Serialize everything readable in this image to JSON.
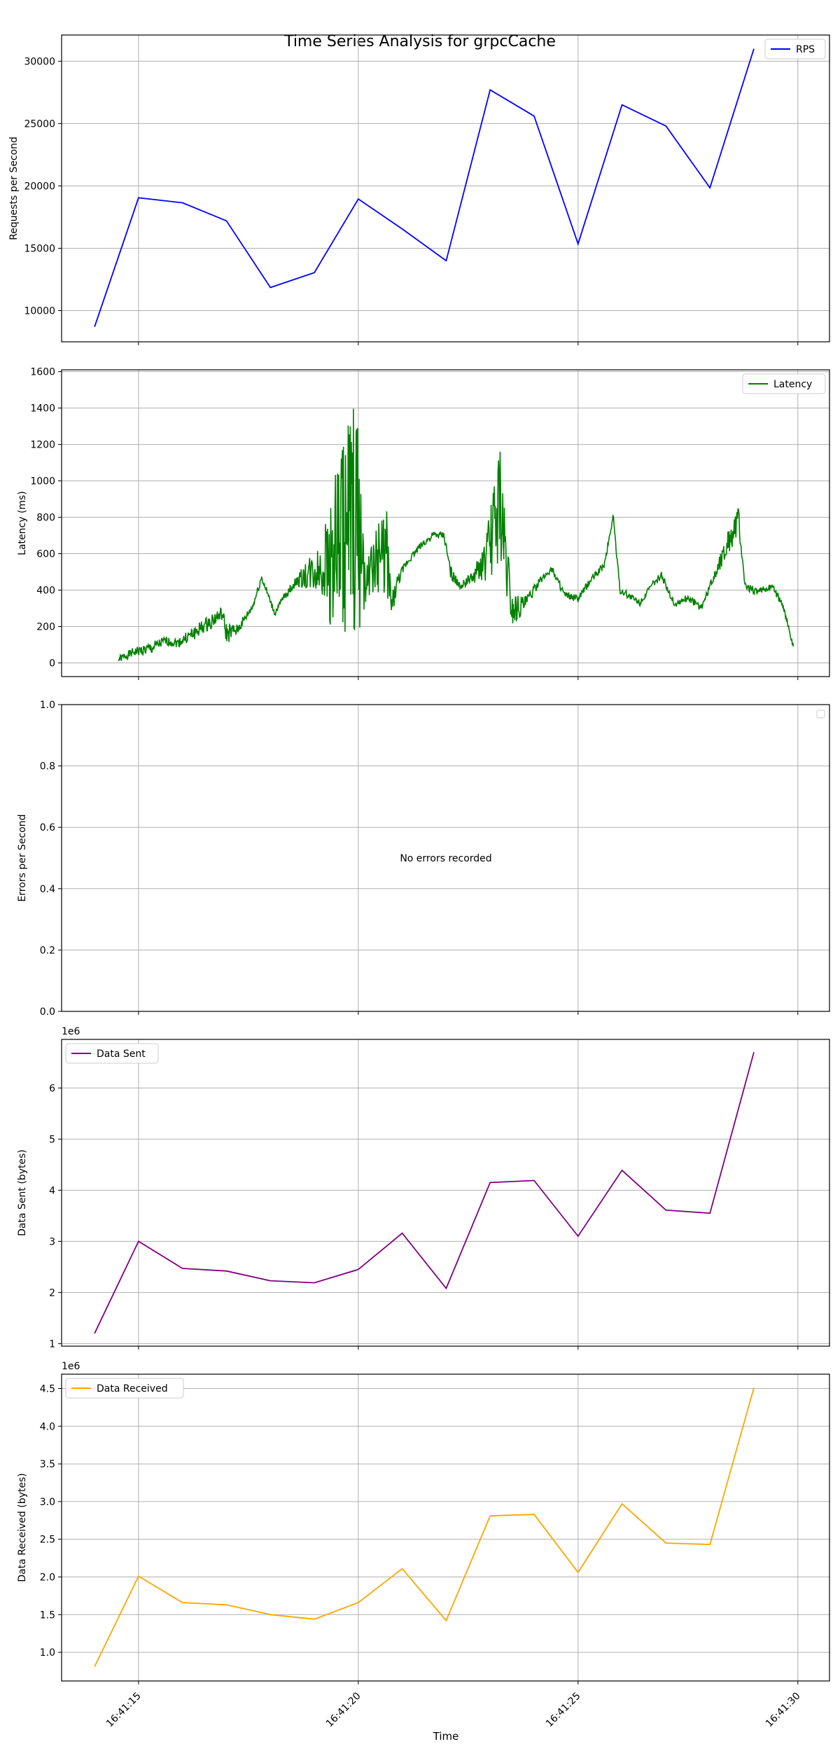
{
  "figure": {
    "title": "Time Series Analysis for grpcCache",
    "xlabel": "Time"
  },
  "x_ticks": [
    "16:41:15",
    "16:41:20",
    "16:41:25",
    "16:41:30"
  ],
  "colors": {
    "rps": "#0000ff",
    "latency": "#008000",
    "data_sent": "#800080",
    "data_received": "#ffa500",
    "grid": "#b0b0b0"
  },
  "chart_data": [
    {
      "type": "line",
      "ylabel": "Requests per Second",
      "x": [
        "16:41:14",
        "16:41:15",
        "16:41:16",
        "16:41:17",
        "16:41:18",
        "16:41:19",
        "16:41:20",
        "16:41:21",
        "16:41:22",
        "16:41:23",
        "16:41:24",
        "16:41:25",
        "16:41:26",
        "16:41:27",
        "16:41:28",
        "16:41:29"
      ],
      "series": [
        {
          "name": "RPS",
          "values": [
            8700,
            19050,
            18650,
            17200,
            11850,
            13050,
            18950,
            16550,
            14000,
            27700,
            25600,
            15350,
            26500,
            24800,
            19850,
            31000
          ]
        }
      ],
      "ylim": [
        7500,
        32100
      ],
      "yticks": [
        10000,
        15000,
        20000,
        25000,
        30000
      ],
      "ytick_labels": [
        "10000",
        "15000",
        "20000",
        "25000",
        "30000"
      ],
      "legend": "upper right",
      "grid": true
    },
    {
      "type": "line",
      "ylabel": "Latency (ms)",
      "series": [
        {
          "name": "Latency",
          "values_note": "dense high-frequency samples from 16:41:14.5 to 16:41:29.9"
        }
      ],
      "ylim": [
        -75,
        1610
      ],
      "yticks": [
        0,
        200,
        400,
        600,
        800,
        1000,
        1200,
        1400,
        1600
      ],
      "ytick_labels": [
        "0",
        "200",
        "400",
        "600",
        "800",
        "1000",
        "1200",
        "1400",
        "1600"
      ],
      "envelope": {
        "t": [
          14.55,
          14.9,
          15.3,
          15.6,
          15.9,
          16.3,
          16.6,
          16.9,
          17.0,
          17.25,
          17.6,
          17.8,
          18.1,
          18.3,
          18.6,
          18.9,
          19.2,
          19.4,
          19.7,
          19.95,
          20.2,
          20.45,
          20.65,
          20.75,
          20.9,
          21.1,
          21.4,
          21.7,
          21.95,
          22.1,
          22.3,
          22.6,
          22.9,
          23.0,
          23.2,
          23.5,
          23.8,
          24.1,
          24.4,
          24.7,
          25.0,
          25.3,
          25.6,
          25.8,
          25.95,
          26.15,
          26.4,
          26.7,
          26.9,
          27.2,
          27.5,
          27.8,
          28.0,
          28.3,
          28.65,
          28.8,
          29.1,
          29.4,
          29.65,
          29.9
        ],
        "mid": [
          20,
          60,
          80,
          120,
          110,
          170,
          220,
          270,
          160,
          180,
          310,
          470,
          270,
          360,
          450,
          490,
          520,
          580,
          700,
          760,
          460,
          570,
          620,
          300,
          450,
          550,
          640,
          700,
          700,
          500,
          420,
          470,
          560,
          650,
          900,
          300,
          330,
          440,
          520,
          370,
          350,
          460,
          540,
          810,
          400,
          370,
          330,
          430,
          480,
          320,
          360,
          300,
          420,
          600,
          780,
          420,
          390,
          420,
          330,
          80
        ],
        "amp": [
          20,
          25,
          35,
          25,
          25,
          40,
          40,
          40,
          60,
          30,
          20,
          25,
          15,
          20,
          30,
          100,
          160,
          420,
          600,
          700,
          100,
          200,
          250,
          80,
          40,
          20,
          20,
          20,
          20,
          40,
          20,
          30,
          120,
          200,
          350,
          100,
          40,
          20,
          20,
          20,
          20,
          20,
          20,
          20,
          20,
          20,
          20,
          20,
          20,
          20,
          20,
          20,
          20,
          60,
          80,
          20,
          20,
          20,
          20,
          20
        ]
      },
      "legend": "upper right",
      "grid": true
    },
    {
      "type": "line",
      "ylabel": "Errors per Second",
      "series": [],
      "annotation": "No errors recorded",
      "ylim": [
        0.0,
        1.0
      ],
      "yticks": [
        0.0,
        0.2,
        0.4,
        0.6,
        0.8,
        1.0
      ],
      "ytick_labels": [
        "0.0",
        "0.2",
        "0.4",
        "0.6",
        "0.8",
        "1.0"
      ],
      "legend": "upper right",
      "grid": true
    },
    {
      "type": "line",
      "ylabel": "Data Sent (bytes)",
      "offset_text": "1e6",
      "series": [
        {
          "name": "Data Sent",
          "values": [
            1.2,
            3.0,
            2.47,
            2.42,
            2.23,
            2.19,
            2.45,
            3.16,
            2.08,
            4.15,
            4.19,
            3.1,
            4.39,
            3.61,
            3.55,
            6.7
          ]
        }
      ],
      "ylim": [
        0.95,
        6.95
      ],
      "yticks": [
        1,
        2,
        3,
        4,
        5,
        6
      ],
      "ytick_labels": [
        "1",
        "2",
        "3",
        "4",
        "5",
        "6"
      ],
      "legend": "upper left",
      "grid": true
    },
    {
      "type": "line",
      "ylabel": "Data Received (bytes)",
      "offset_text": "1e6",
      "series": [
        {
          "name": "Data Received",
          "values": [
            0.81,
            2.01,
            1.66,
            1.63,
            1.5,
            1.44,
            1.66,
            2.11,
            1.42,
            2.81,
            2.83,
            2.06,
            2.97,
            2.45,
            2.43,
            4.51
          ]
        }
      ],
      "ylim": [
        0.62,
        4.69
      ],
      "yticks": [
        1.0,
        1.5,
        2.0,
        2.5,
        3.0,
        3.5,
        4.0,
        4.5
      ],
      "ytick_labels": [
        "1.0",
        "1.5",
        "2.0",
        "2.5",
        "3.0",
        "3.5",
        "4.0",
        "4.5"
      ],
      "legend": "upper left",
      "grid": true
    }
  ]
}
